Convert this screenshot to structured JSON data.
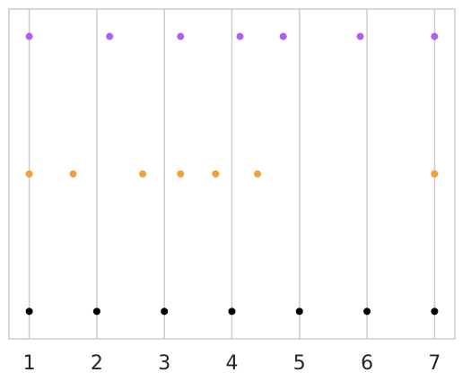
{
  "chart_data": {
    "type": "scatter",
    "title": "",
    "xlabel": "",
    "ylabel": "",
    "xlim": [
      0.7,
      7.3
    ],
    "ylim": [
      0.8,
      3.2
    ],
    "grid": "vertical",
    "x_ticks": [
      1,
      2,
      3,
      4,
      5,
      6,
      7
    ],
    "x_tick_labels": [
      "1",
      "2",
      "3",
      "4",
      "5",
      "6",
      "7"
    ],
    "series": [
      {
        "color": "#000000",
        "points": [
          {
            "x": 1,
            "y": 1
          },
          {
            "x": 2,
            "y": 1
          },
          {
            "x": 3,
            "y": 1
          },
          {
            "x": 4,
            "y": 1
          },
          {
            "x": 5,
            "y": 1
          },
          {
            "x": 6,
            "y": 1
          },
          {
            "x": 7,
            "y": 1
          }
        ]
      },
      {
        "color": "#f4a03a",
        "points": [
          {
            "x": 1.0,
            "y": 2
          },
          {
            "x": 1.65,
            "y": 2
          },
          {
            "x": 2.68,
            "y": 2
          },
          {
            "x": 3.24,
            "y": 2
          },
          {
            "x": 3.76,
            "y": 2
          },
          {
            "x": 4.38,
            "y": 2
          },
          {
            "x": 7.0,
            "y": 2
          }
        ]
      },
      {
        "color": "#b05ef0",
        "points": [
          {
            "x": 1.0,
            "y": 3
          },
          {
            "x": 2.19,
            "y": 3
          },
          {
            "x": 3.24,
            "y": 3
          },
          {
            "x": 4.12,
            "y": 3
          },
          {
            "x": 4.76,
            "y": 3
          },
          {
            "x": 5.9,
            "y": 3
          },
          {
            "x": 7.0,
            "y": 3
          }
        ]
      }
    ]
  },
  "colors": {
    "grid": "#cccccc",
    "frame": "#cccccc",
    "tick_label": "#262626"
  }
}
